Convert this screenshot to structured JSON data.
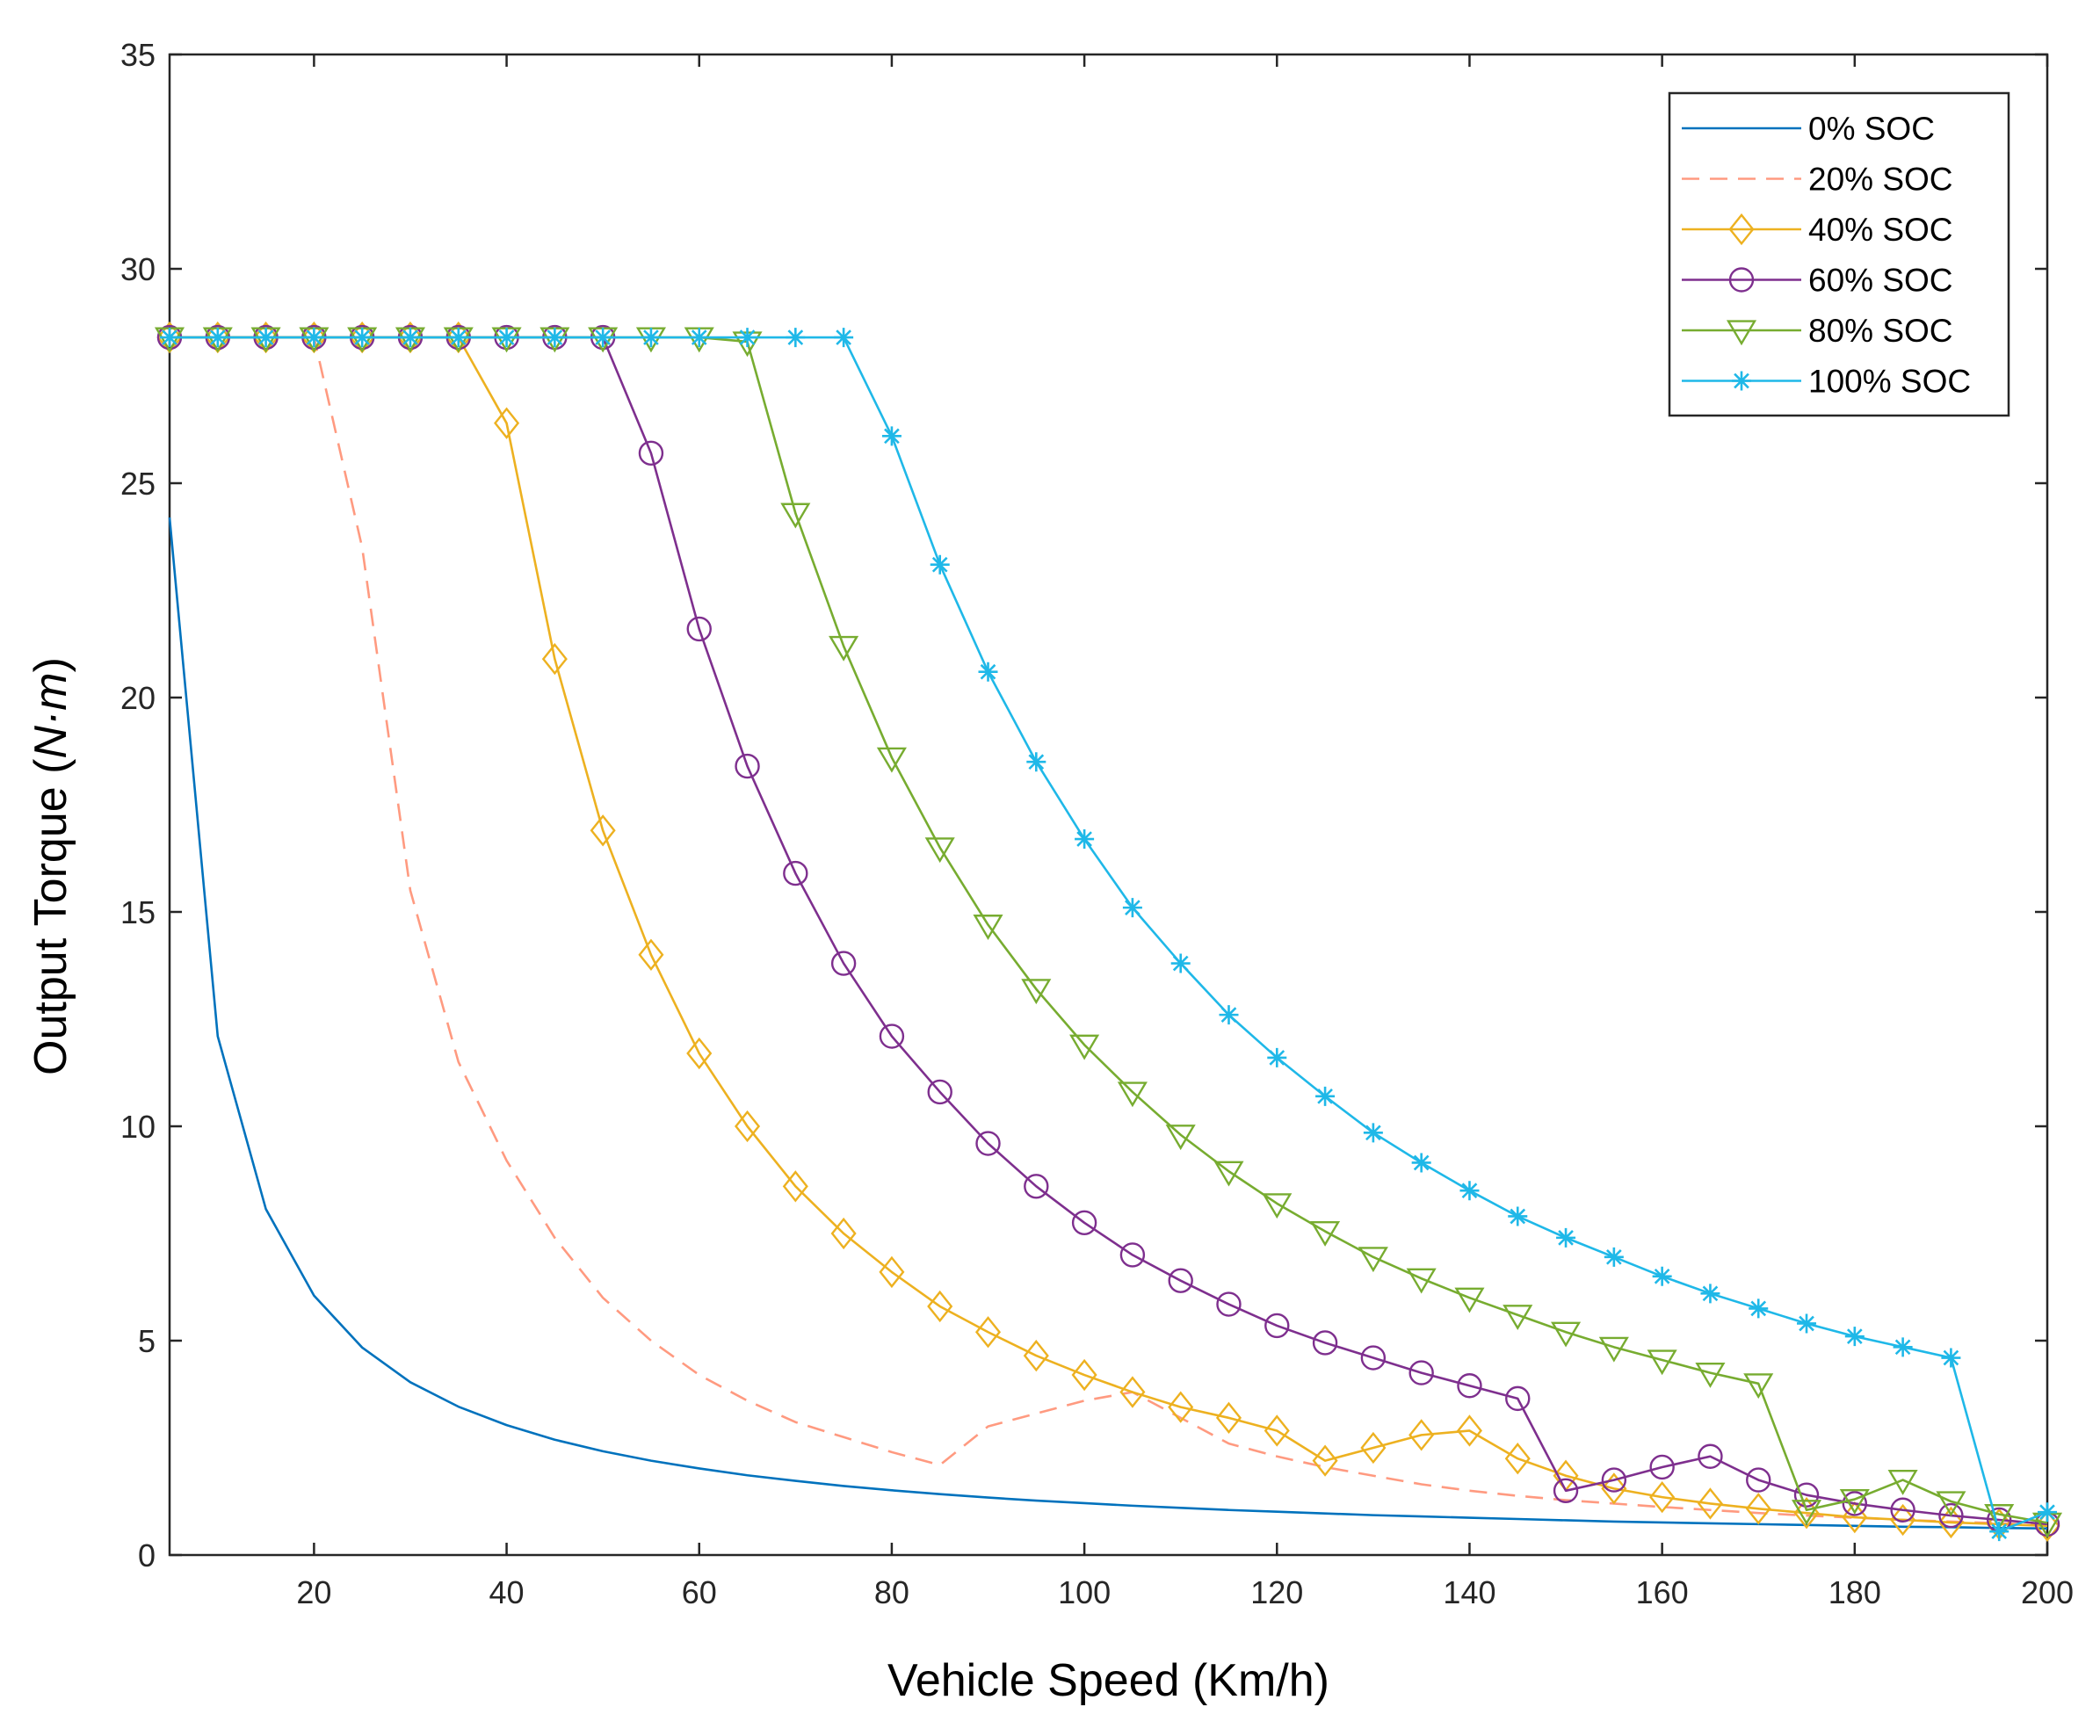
{
  "chart_data": {
    "type": "line",
    "title": "",
    "xlabel": "Vehicle Speed (Km/h)",
    "ylabel_parts": [
      "Output Torque (",
      "N·m",
      ")"
    ],
    "xlim": [
      5,
      200
    ],
    "ylim": [
      0,
      35
    ],
    "xticks": [
      20,
      40,
      60,
      80,
      100,
      120,
      140,
      160,
      180,
      200
    ],
    "yticks": [
      0,
      5,
      10,
      15,
      20,
      25,
      30,
      35
    ],
    "legend_position": "top-right",
    "series": [
      {
        "name": "0% SOC",
        "color": "#0072BD",
        "line": "solid",
        "marker": "none",
        "x": [
          5,
          10,
          15,
          20,
          25,
          30,
          35,
          40,
          45,
          50,
          55,
          60,
          65,
          70,
          75,
          80,
          85,
          90,
          95,
          100,
          105,
          110,
          115,
          120,
          125,
          130,
          135,
          140,
          145,
          150,
          155,
          160,
          165,
          170,
          175,
          180,
          185,
          190,
          195,
          200
        ],
        "y": [
          24.2,
          12.1,
          8.07,
          6.05,
          4.84,
          4.03,
          3.46,
          3.03,
          2.69,
          2.42,
          2.2,
          2.02,
          1.86,
          1.73,
          1.61,
          1.51,
          1.42,
          1.34,
          1.27,
          1.21,
          1.15,
          1.1,
          1.05,
          1.01,
          0.97,
          0.93,
          0.9,
          0.87,
          0.84,
          0.81,
          0.78,
          0.76,
          0.74,
          0.72,
          0.7,
          0.68,
          0.66,
          0.65,
          0.63,
          0.62
        ]
      },
      {
        "name": "20% SOC",
        "color": "#FF9A80",
        "line": "dashed",
        "marker": "none",
        "x": [
          5,
          10,
          15,
          20,
          25,
          30,
          35,
          40,
          45,
          50,
          55,
          60,
          65,
          70,
          75,
          80,
          85,
          90,
          95,
          100,
          105,
          110,
          115,
          120,
          125,
          130,
          135,
          140,
          145,
          150,
          155,
          160,
          165,
          170,
          175,
          180,
          185,
          190,
          195,
          200
        ],
        "y": [
          28.4,
          28.4,
          28.4,
          28.4,
          23.5,
          15.5,
          11.5,
          9.2,
          7.4,
          6.0,
          5.0,
          4.2,
          3.6,
          3.1,
          2.75,
          2.4,
          2.1,
          3.0,
          3.3,
          3.6,
          3.8,
          3.2,
          2.6,
          2.3,
          2.05,
          1.85,
          1.65,
          1.5,
          1.38,
          1.28,
          1.2,
          1.12,
          1.05,
          0.98,
          0.92,
          0.87,
          0.82,
          0.78,
          0.74,
          0.7
        ]
      },
      {
        "name": "40% SOC",
        "color": "#EDB120",
        "line": "solid",
        "marker": "diamond",
        "x": [
          5,
          10,
          15,
          20,
          25,
          30,
          35,
          40,
          45,
          50,
          55,
          60,
          65,
          70,
          75,
          80,
          85,
          90,
          95,
          100,
          105,
          110,
          115,
          120,
          125,
          130,
          135,
          140,
          145,
          150,
          155,
          160,
          165,
          170,
          175,
          180,
          185,
          190,
          195,
          200
        ],
        "y": [
          28.4,
          28.4,
          28.4,
          28.4,
          28.4,
          28.4,
          28.4,
          26.4,
          20.9,
          16.9,
          14.0,
          11.7,
          10.0,
          8.6,
          7.5,
          6.6,
          5.8,
          5.2,
          4.65,
          4.2,
          3.8,
          3.45,
          3.2,
          2.9,
          2.2,
          2.5,
          2.8,
          2.9,
          2.25,
          1.85,
          1.55,
          1.35,
          1.2,
          1.08,
          0.98,
          0.88,
          0.82,
          0.76,
          0.72,
          0.68
        ]
      },
      {
        "name": "60% SOC",
        "color": "#7E2F8E",
        "line": "solid",
        "marker": "circle",
        "x": [
          5,
          10,
          15,
          20,
          25,
          30,
          35,
          40,
          45,
          50,
          55,
          60,
          65,
          70,
          75,
          80,
          85,
          90,
          95,
          100,
          105,
          110,
          115,
          120,
          125,
          130,
          135,
          140,
          145,
          150,
          155,
          160,
          165,
          170,
          175,
          180,
          185,
          190,
          195,
          200
        ],
        "y": [
          28.4,
          28.4,
          28.4,
          28.4,
          28.4,
          28.4,
          28.4,
          28.4,
          28.4,
          28.4,
          25.7,
          21.6,
          18.4,
          15.9,
          13.8,
          12.1,
          10.8,
          9.6,
          8.6,
          7.75,
          7.0,
          6.4,
          5.85,
          5.35,
          4.95,
          4.6,
          4.25,
          3.95,
          3.65,
          1.5,
          1.75,
          2.05,
          2.3,
          1.75,
          1.4,
          1.2,
          1.05,
          0.92,
          0.82,
          0.72
        ]
      },
      {
        "name": "80% SOC",
        "color": "#77AC30",
        "line": "solid",
        "marker": "triangle-down",
        "x": [
          5,
          10,
          15,
          20,
          25,
          30,
          35,
          40,
          45,
          50,
          55,
          60,
          65,
          70,
          75,
          80,
          85,
          90,
          95,
          100,
          105,
          110,
          115,
          120,
          125,
          130,
          135,
          140,
          145,
          150,
          155,
          160,
          165,
          170,
          175,
          180,
          185,
          190,
          195,
          200
        ],
        "y": [
          28.4,
          28.4,
          28.4,
          28.4,
          28.4,
          28.4,
          28.4,
          28.4,
          28.4,
          28.4,
          28.4,
          28.4,
          28.3,
          24.3,
          21.2,
          18.6,
          16.5,
          14.7,
          13.2,
          11.9,
          10.8,
          9.8,
          8.95,
          8.2,
          7.55,
          6.95,
          6.45,
          6.0,
          5.6,
          5.2,
          4.85,
          4.55,
          4.25,
          4.0,
          1.05,
          1.3,
          1.75,
          1.25,
          0.95,
          0.75
        ]
      },
      {
        "name": "100% SOC",
        "color": "#1FB8E8",
        "line": "solid",
        "marker": "asterisk",
        "x": [
          5,
          10,
          15,
          20,
          25,
          30,
          35,
          40,
          45,
          50,
          55,
          60,
          65,
          70,
          75,
          80,
          85,
          90,
          95,
          100,
          105,
          110,
          115,
          120,
          125,
          130,
          135,
          140,
          145,
          150,
          155,
          160,
          165,
          170,
          175,
          180,
          185,
          190,
          195,
          200
        ],
        "y": [
          28.4,
          28.4,
          28.4,
          28.4,
          28.4,
          28.4,
          28.4,
          28.4,
          28.4,
          28.4,
          28.4,
          28.4,
          28.4,
          28.4,
          28.4,
          26.1,
          23.1,
          20.6,
          18.5,
          16.7,
          15.1,
          13.8,
          12.6,
          11.6,
          10.7,
          9.85,
          9.15,
          8.5,
          7.9,
          7.4,
          6.95,
          6.5,
          6.1,
          5.75,
          5.4,
          5.1,
          4.85,
          4.6,
          0.55,
          1.0
        ]
      }
    ]
  }
}
